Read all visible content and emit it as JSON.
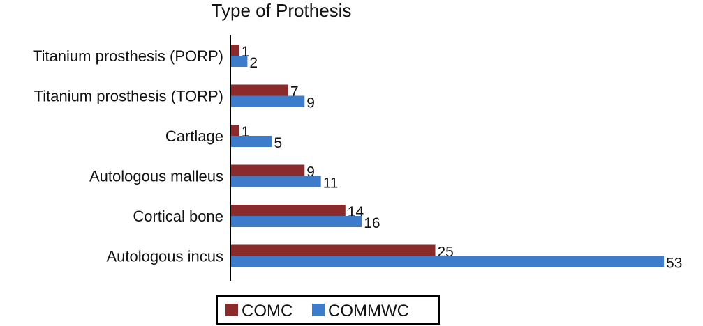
{
  "chart_data": {
    "type": "bar",
    "orientation": "horizontal",
    "title": "Type of Prothesis",
    "xlabel": "",
    "ylabel": "",
    "categories": [
      "Titanium prosthesis (PORP)",
      "Titanium prosthesis (TORP)",
      "Cartlage",
      "Autologous malleus",
      "Cortical bone",
      "Autologous incus"
    ],
    "series": [
      {
        "name": "COMC",
        "values": [
          1,
          7,
          1,
          9,
          14,
          25
        ],
        "color": "#8B2A2A"
      },
      {
        "name": "COMMWC",
        "values": [
          2,
          9,
          5,
          11,
          16,
          53
        ],
        "color": "#3D7CCB"
      }
    ],
    "xlim": [
      0,
      53
    ],
    "grid": false,
    "legend_position": "bottom",
    "data_labels": true
  }
}
